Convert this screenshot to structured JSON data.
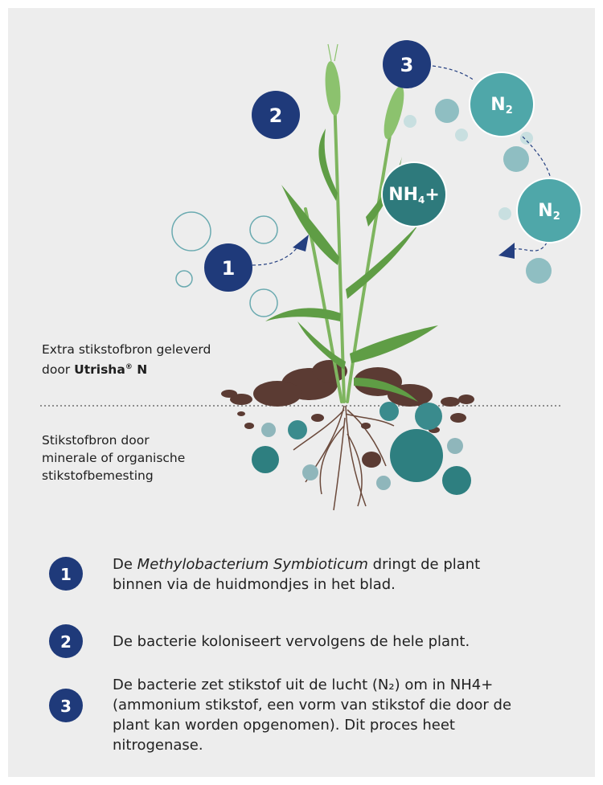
{
  "diagram": {
    "step_badges": [
      "1",
      "2",
      "3"
    ],
    "molecules": [
      {
        "text": "N",
        "sub": "2"
      },
      {
        "text": "N",
        "sub": "2"
      },
      {
        "text": "NH",
        "sub": "4",
        "suffix": "+"
      }
    ],
    "above_soil": {
      "text": "Extra stikstofbron geleverd door",
      "brand": "Utrisha",
      "mark": "®",
      "brand_suffix": "N"
    },
    "below_soil": "Stikstofbron door minerale of organische stikstofbemesting"
  },
  "legend": [
    {
      "number": "1",
      "before": "De",
      "italic": "Methylobacterium Symbioticum",
      "after": "dringt de plant binnen via de huidmondjes in het blad."
    },
    {
      "number": "2",
      "text": "De bacterie koloniseert vervolgens de hele plant."
    },
    {
      "number": "3",
      "text": "De bacterie zet stikstof uit de lucht (N₂) om in NH4+ (ammonium stikstof, een vorm van stikstof die door de plant kan worden opgenomen). Dit proces heet nitrogenase."
    }
  ]
}
